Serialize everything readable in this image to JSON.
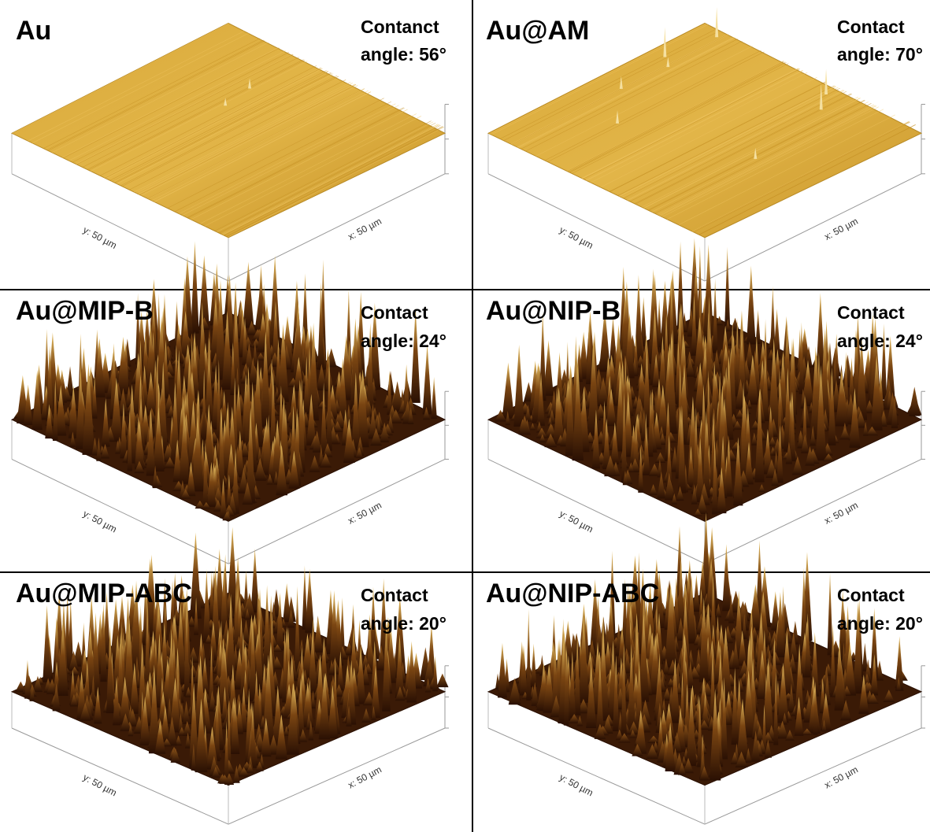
{
  "panels": [
    {
      "title": "Au",
      "contact": [
        "Contanct",
        "angle:  56°"
      ],
      "y_label": "y: 50 µm",
      "x_label": "x: 50 µm"
    },
    {
      "title": "Au@AM",
      "contact": [
        "Contact",
        "angle: 70°"
      ],
      "y_label": "y: 50 µm",
      "x_label": "x: 50 µm"
    },
    {
      "title": "Au@MIP-B",
      "contact": [
        "Contact",
        "angle: 24°"
      ],
      "y_label": "y: 50 µm",
      "x_label": "x: 50 µm"
    },
    {
      "title": "Au@NIP-B",
      "contact": [
        "Contact",
        "angle: 24°"
      ],
      "y_label": "y: 50 µm",
      "x_label": "x: 50 µm"
    },
    {
      "title": "Au@MIP-ABC",
      "contact": [
        "Contact",
        "angle: 20°"
      ],
      "y_label": "y: 50 µm",
      "x_label": "x: 50 µm"
    },
    {
      "title": "Au@NIP-ABC",
      "contact": [
        "Contact",
        "angle: 20°"
      ],
      "y_label": "y: 50 µm",
      "x_label": "x: 50 µm"
    }
  ]
}
